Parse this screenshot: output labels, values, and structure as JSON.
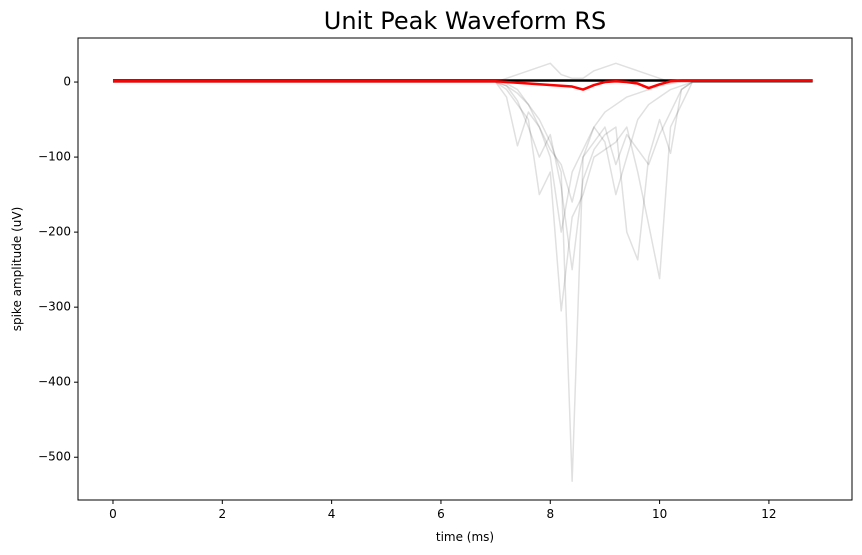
{
  "chart_data": {
    "type": "line",
    "title": "Unit Peak Waveform RS",
    "x_label": "time (ms)",
    "y_label": "spike amplitude (uV)",
    "x": [
      0,
      0.2,
      0.4,
      0.6,
      0.8,
      1,
      1.2,
      1.4,
      1.6,
      1.8,
      2,
      2.2,
      2.4,
      2.6,
      2.8,
      3,
      3.2,
      3.4,
      3.6,
      3.8,
      4,
      4.2,
      4.4,
      4.6,
      4.8,
      5,
      5.2,
      5.4,
      5.6,
      5.8,
      6,
      6.2,
      6.4,
      6.6,
      6.8,
      7,
      7.2,
      7.4,
      7.6,
      7.8,
      8,
      8.2,
      8.4,
      8.6,
      8.8,
      9,
      9.2,
      9.4,
      9.6,
      9.8,
      10,
      10.2,
      10.4,
      10.6,
      10.8,
      11,
      11.2,
      11.4,
      11.6,
      11.8,
      12,
      12.2,
      12.4,
      12.6,
      12.8
    ],
    "series": [
      {
        "color": "rgba(0,0,0,0.12)",
        "values": [
          0,
          0,
          0,
          0,
          0,
          0,
          0,
          0,
          0,
          0,
          0,
          0,
          0,
          0,
          0,
          0,
          0,
          0,
          0,
          0,
          0,
          0,
          0,
          0,
          0,
          0,
          0,
          0,
          0,
          0,
          0,
          0,
          0,
          0,
          0,
          0,
          -5,
          -15,
          -30,
          -50,
          -80,
          -120,
          -532,
          -100,
          -60,
          -40,
          -30,
          -20,
          -15,
          -10,
          -5,
          -2,
          0,
          0,
          0,
          0,
          0,
          0,
          0,
          0,
          0,
          0,
          0,
          0,
          0
        ]
      },
      {
        "color": "rgba(0,0,0,0.12)",
        "values": [
          0,
          0,
          0,
          0,
          0,
          0,
          0,
          0,
          0,
          0,
          0,
          0,
          0,
          0,
          0,
          0,
          0,
          0,
          0,
          0,
          0,
          0,
          0,
          0,
          0,
          0,
          0,
          0,
          0,
          0,
          0,
          0,
          0,
          0,
          0,
          0,
          -20,
          -85,
          -40,
          -60,
          -100,
          -200,
          -120,
          -90,
          -60,
          -80,
          -150,
          -100,
          -50,
          -30,
          -20,
          -10,
          -5,
          0,
          0,
          0,
          0,
          0,
          0,
          0,
          0,
          0,
          0,
          0,
          0
        ]
      },
      {
        "color": "rgba(0,0,0,0.12)",
        "values": [
          0,
          0,
          0,
          0,
          0,
          0,
          0,
          0,
          0,
          0,
          0,
          0,
          0,
          0,
          0,
          0,
          0,
          0,
          0,
          0,
          0,
          0,
          0,
          0,
          0,
          0,
          0,
          0,
          0,
          0,
          0,
          0,
          0,
          0,
          0,
          0,
          -10,
          -30,
          -50,
          -150,
          -120,
          -305,
          -180,
          -150,
          -100,
          -90,
          -80,
          -60,
          -120,
          -190,
          -262,
          -60,
          -30,
          0,
          0,
          0,
          0,
          0,
          0,
          0,
          0,
          0,
          0,
          0,
          0
        ]
      },
      {
        "color": "rgba(0,0,0,0.12)",
        "values": [
          0,
          0,
          0,
          0,
          0,
          0,
          0,
          0,
          0,
          0,
          0,
          0,
          0,
          0,
          0,
          0,
          0,
          0,
          0,
          0,
          0,
          0,
          0,
          0,
          0,
          0,
          0,
          0,
          0,
          0,
          0,
          0,
          0,
          0,
          0,
          0,
          -5,
          -25,
          -60,
          -100,
          -70,
          -140,
          -250,
          -130,
          -90,
          -70,
          -60,
          -200,
          -237,
          -100,
          -50,
          -95,
          -10,
          0,
          0,
          0,
          0,
          0,
          0,
          0,
          0,
          0,
          0,
          0,
          0
        ]
      },
      {
        "color": "rgba(0,0,0,0.12)",
        "values": [
          0,
          0,
          0,
          0,
          0,
          0,
          0,
          0,
          0,
          0,
          0,
          0,
          0,
          0,
          0,
          0,
          0,
          0,
          0,
          0,
          0,
          0,
          0,
          0,
          0,
          0,
          0,
          0,
          0,
          0,
          0,
          0,
          0,
          0,
          0,
          0,
          -2,
          -10,
          -30,
          -60,
          -90,
          -110,
          -160,
          -100,
          -80,
          -60,
          -110,
          -70,
          -90,
          -110,
          -70,
          -40,
          -10,
          0,
          0,
          0,
          0,
          0,
          0,
          0,
          0,
          0,
          0,
          0,
          0
        ]
      },
      {
        "color": "rgba(0,0,0,0.12)",
        "values": [
          0,
          0,
          0,
          0,
          0,
          0,
          0,
          0,
          0,
          0,
          0,
          0,
          0,
          0,
          0,
          0,
          0,
          0,
          0,
          0,
          0,
          0,
          0,
          0,
          0,
          0,
          0,
          0,
          0,
          0,
          0,
          0,
          0,
          0,
          0,
          0,
          5,
          10,
          15,
          20,
          25,
          10,
          5,
          5,
          15,
          20,
          25,
          20,
          15,
          10,
          5,
          0,
          0,
          0,
          0,
          0,
          0,
          0,
          0,
          0,
          0,
          0,
          0,
          0,
          0
        ]
      },
      {
        "color": "#000000",
        "values": [
          2,
          2,
          2,
          2,
          2,
          2,
          2,
          2,
          2,
          2,
          2,
          2,
          2,
          2,
          2,
          2,
          2,
          2,
          2,
          2,
          2,
          2,
          2,
          2,
          2,
          2,
          2,
          2,
          2,
          2,
          2,
          2,
          2,
          2,
          2,
          2,
          2,
          2,
          2,
          2,
          2,
          2,
          2,
          2,
          2,
          2,
          2,
          2,
          2,
          2,
          2,
          2,
          2,
          2,
          2,
          2,
          2,
          2,
          2,
          2,
          2,
          2,
          2,
          2,
          2
        ]
      },
      {
        "color": "#ff0000",
        "values": [
          1,
          1,
          1,
          1,
          1,
          1,
          1,
          1,
          1,
          1,
          1,
          1,
          1,
          1,
          1,
          1,
          1,
          1,
          1,
          1,
          1,
          1,
          1,
          1,
          1,
          1,
          1,
          1,
          1,
          1,
          1,
          1,
          1,
          1,
          1,
          1,
          0,
          -1,
          -2,
          -3,
          -4,
          -5,
          -6,
          -10,
          -4,
          0,
          1,
          0,
          -2,
          -8,
          -3,
          1,
          2,
          2,
          2,
          2,
          2,
          2,
          2,
          2,
          2,
          2,
          2,
          2,
          2
        ]
      }
    ],
    "xlim": [
      -0.64,
      13.52
    ],
    "ylim": [
      -557,
      58.7
    ],
    "xticks": [
      0,
      2,
      4,
      6,
      8,
      10,
      12
    ],
    "yticks": [
      {
        "value": -500,
        "label": "−500"
      },
      {
        "value": -400,
        "label": "−400"
      },
      {
        "value": -300,
        "label": "−300"
      },
      {
        "value": -200,
        "label": "−200"
      },
      {
        "value": -100,
        "label": "−100"
      },
      0
    ],
    "grid": false
  }
}
